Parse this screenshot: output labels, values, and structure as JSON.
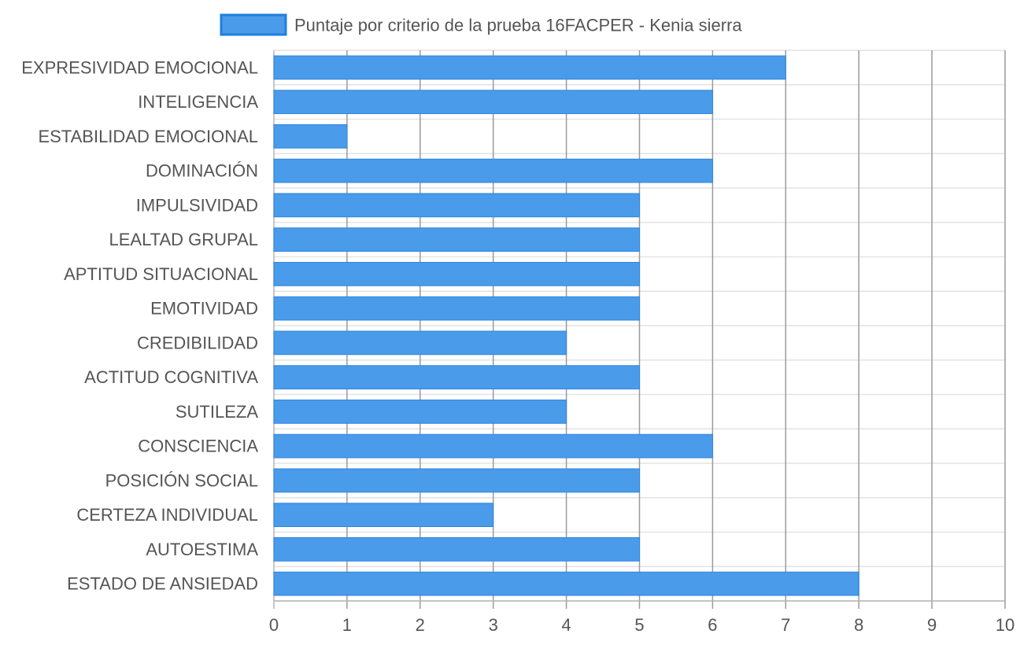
{
  "chart_data": {
    "type": "bar",
    "orientation": "horizontal",
    "categories": [
      "EXPRESIVIDAD EMOCIONAL",
      "INTELIGENCIA",
      "ESTABILIDAD EMOCIONAL",
      "DOMINACIÓN",
      "IMPULSIVIDAD",
      "LEALTAD GRUPAL",
      "APTITUD SITUACIONAL",
      "EMOTIVIDAD",
      "CREDIBILIDAD",
      "ACTITUD COGNITIVA",
      "SUTILEZA",
      "CONSCIENCIA",
      "POSICIÓN SOCIAL",
      "CERTEZA INDIVIDUAL",
      "AUTOESTIMA",
      "ESTADO DE ANSIEDAD"
    ],
    "series": [
      {
        "name": "Puntaje por criterio de la prueba 16FACPER - Kenia sierra",
        "values": [
          7,
          6,
          1,
          6,
          5,
          5,
          5,
          5,
          4,
          5,
          4,
          6,
          5,
          3,
          5,
          8
        ],
        "color": "#4a9be9",
        "border_color": "#2f86e0"
      }
    ],
    "x_ticks": [
      "0",
      "1",
      "2",
      "3",
      "4",
      "5",
      "6",
      "7",
      "8",
      "9",
      "10"
    ],
    "xlim": [
      0,
      10
    ],
    "grid": true,
    "legend_position": "top"
  }
}
